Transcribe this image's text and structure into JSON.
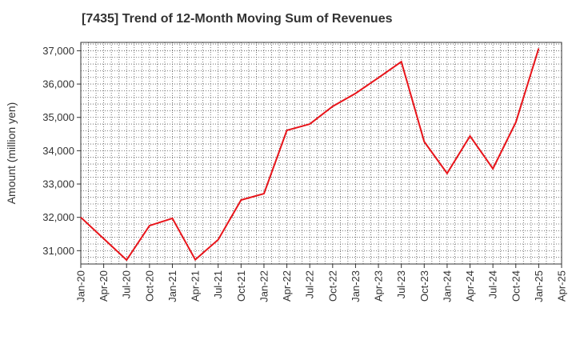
{
  "title": "[7435]  Trend of 12-Month Moving Sum of Revenues",
  "chart_data": {
    "type": "line",
    "title": "[7435]  Trend of 12-Month Moving Sum of Revenues",
    "xlabel": "",
    "ylabel": "Amount (million yen)",
    "x_ticks": [
      "Jan-20",
      "Apr-20",
      "Jul-20",
      "Oct-20",
      "Jan-21",
      "Apr-21",
      "Jul-21",
      "Oct-21",
      "Jan-22",
      "Apr-22",
      "Jul-22",
      "Oct-22",
      "Jan-23",
      "Apr-23",
      "Jul-23",
      "Oct-23",
      "Jan-24",
      "Apr-24",
      "Jul-24",
      "Oct-24",
      "Jan-25",
      "Apr-25"
    ],
    "y_ticks": [
      31000,
      32000,
      33000,
      34000,
      35000,
      36000,
      37000
    ],
    "y_tick_labels": [
      "31,000",
      "32,000",
      "33,000",
      "34,000",
      "35,000",
      "36,000",
      "37,000"
    ],
    "ylim": [
      30600,
      37250
    ],
    "grid": true,
    "line_color": "#e8141a",
    "series": [
      {
        "values": [
          {
            "x": "Jan-20",
            "y": 32000
          },
          {
            "x": "Jul-20",
            "y": 30720
          },
          {
            "x": "Oct-20",
            "y": 31750
          },
          {
            "x": "Jan-21",
            "y": 31970
          },
          {
            "x": "Apr-21",
            "y": 30730
          },
          {
            "x": "Jul-21",
            "y": 31330
          },
          {
            "x": "Oct-21",
            "y": 32520
          },
          {
            "x": "Jan-22",
            "y": 32710
          },
          {
            "x": "Apr-22",
            "y": 34610
          },
          {
            "x": "Jul-22",
            "y": 34800
          },
          {
            "x": "Oct-22",
            "y": 35330
          },
          {
            "x": "Jan-23",
            "y": 35720
          },
          {
            "x": "Apr-23",
            "y": 36190
          },
          {
            "x": "Jul-23",
            "y": 36670
          },
          {
            "x": "Oct-23",
            "y": 34270
          },
          {
            "x": "Jan-24",
            "y": 33320
          },
          {
            "x": "Apr-24",
            "y": 34440
          },
          {
            "x": "Jul-24",
            "y": 33460
          },
          {
            "x": "Oct-24",
            "y": 34850
          },
          {
            "x": "Jan-25",
            "y": 37070
          }
        ]
      }
    ]
  }
}
